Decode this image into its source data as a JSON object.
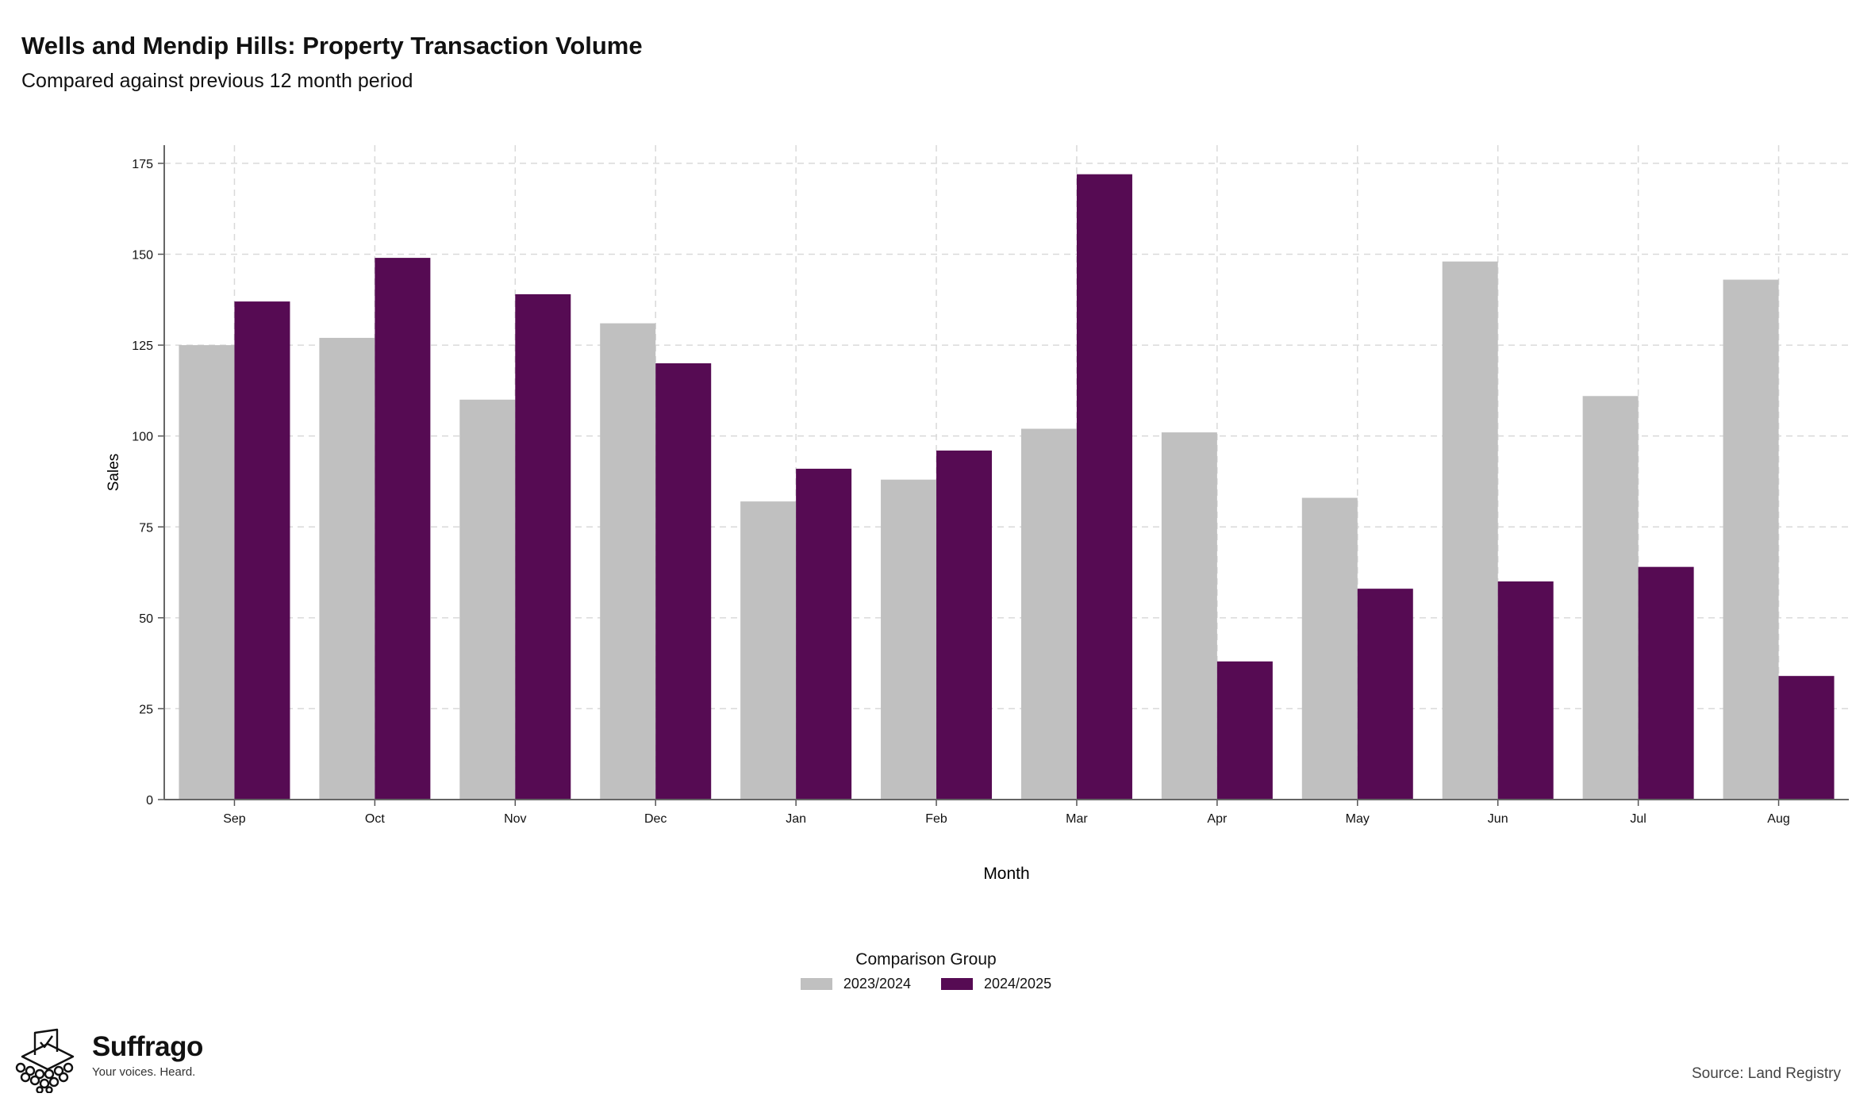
{
  "title": "Wells and Mendip Hills: Property Transaction Volume",
  "subtitle": "Compared against previous 12 month period",
  "legend": {
    "title": "Comparison Group",
    "items": [
      {
        "label": "2023/2024",
        "color": "#c0c0c0"
      },
      {
        "label": "2024/2025",
        "color": "#560b53"
      }
    ]
  },
  "brand": {
    "name": "Suffrago",
    "tagline": "Your voices. Heard.",
    "icon": "ballot-box-icon"
  },
  "source": "Source: Land Registry",
  "chart_data": {
    "type": "bar",
    "xlabel": "Month",
    "ylabel": "Sales",
    "ylim": [
      0,
      180
    ],
    "yticks": [
      0,
      25,
      50,
      75,
      100,
      125,
      150,
      175
    ],
    "grid": true,
    "legend_position": "bottom",
    "categories": [
      "Sep",
      "Oct",
      "Nov",
      "Dec",
      "Jan",
      "Feb",
      "Mar",
      "Apr",
      "May",
      "Jun",
      "Jul",
      "Aug"
    ],
    "series": [
      {
        "name": "2023/2024",
        "color": "#c0c0c0",
        "values": [
          125,
          127,
          110,
          131,
          82,
          88,
          102,
          101,
          83,
          148,
          111,
          143
        ]
      },
      {
        "name": "2024/2025",
        "color": "#560b53",
        "values": [
          137,
          149,
          139,
          120,
          91,
          96,
          172,
          38,
          58,
          60,
          64,
          34
        ]
      }
    ]
  }
}
